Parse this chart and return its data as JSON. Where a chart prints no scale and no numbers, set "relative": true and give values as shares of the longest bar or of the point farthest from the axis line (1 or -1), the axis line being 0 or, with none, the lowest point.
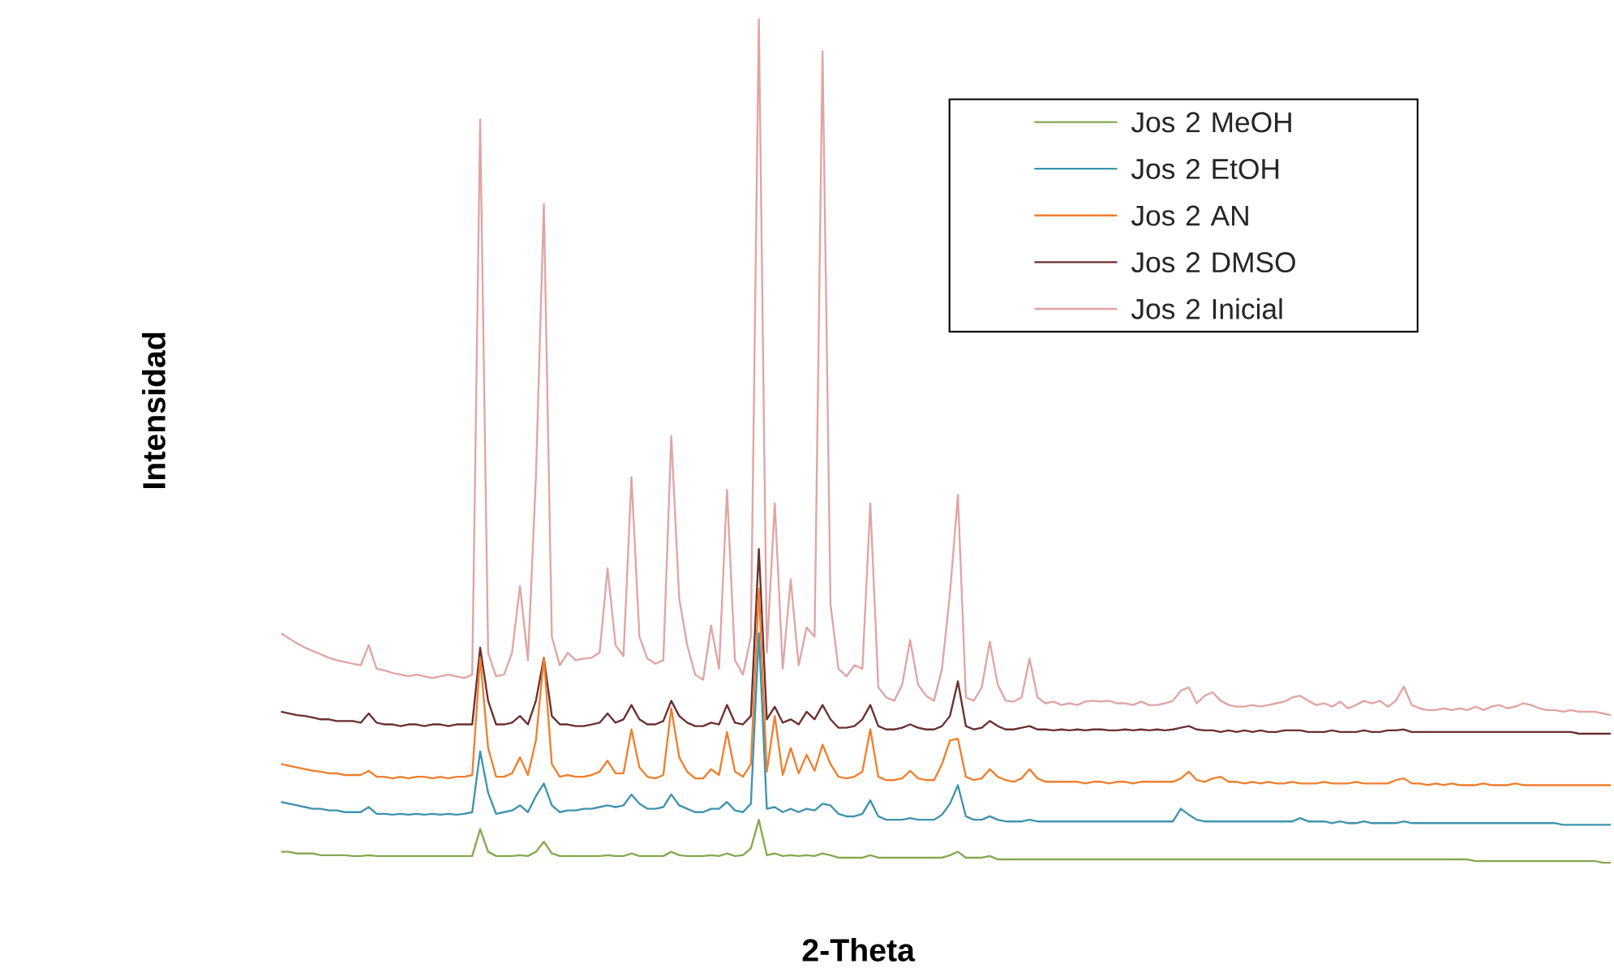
{
  "chart_data": {
    "type": "line",
    "relative": true,
    "xlabel": "2-Theta",
    "ylabel": "Intensidad",
    "legend": "top right",
    "categories": [
      null,
      null,
      null,
      null,
      null,
      null,
      null,
      null,
      null,
      null,
      null,
      null,
      null,
      null,
      null,
      null,
      null,
      null,
      null,
      null,
      null,
      null,
      null,
      null,
      null,
      null,
      null,
      null,
      null,
      null,
      null,
      null,
      null,
      null,
      null,
      null,
      null,
      null,
      null,
      null,
      null,
      null,
      null,
      null,
      null,
      null,
      null,
      null,
      null,
      null,
      null,
      null,
      null,
      null,
      null,
      null,
      null,
      null,
      null,
      null,
      null,
      null,
      null,
      null,
      null,
      null,
      null,
      null,
      null,
      null,
      null,
      null,
      null,
      null,
      null,
      null,
      null,
      null,
      null,
      null,
      null,
      null,
      null,
      null,
      null,
      null,
      null,
      null,
      null,
      null,
      null,
      null,
      null,
      null,
      null,
      null,
      null,
      null,
      null,
      null,
      null,
      null,
      null,
      null,
      null,
      null,
      null,
      null,
      null,
      null,
      null,
      null,
      null,
      null,
      null,
      null,
      null,
      null,
      null,
      null,
      null,
      null,
      null,
      null,
      null,
      null,
      null,
      null,
      null,
      null,
      null,
      null,
      null,
      null,
      null,
      null,
      null,
      null,
      null,
      null,
      null,
      null,
      null,
      null,
      null,
      null,
      null,
      null,
      null,
      null,
      null,
      null,
      null,
      null,
      null,
      null,
      null,
      null,
      null,
      null,
      null,
      null,
      null,
      null,
      null,
      null,
      null,
      null
    ],
    "series": [
      {
        "name": "Jos 2 MeOH",
        "color": "#86a950",
        "values": [
          0.013,
          0.013,
          0.011,
          0.011,
          0.011,
          0.009,
          0.009,
          0.009,
          0.009,
          0.008,
          0.008,
          0.009,
          0.008,
          0.008,
          0.008,
          0.008,
          0.008,
          0.008,
          0.008,
          0.008,
          0.008,
          0.008,
          0.008,
          0.008,
          0.008,
          0.04,
          0.013,
          0.008,
          0.008,
          0.008,
          0.009,
          0.008,
          0.013,
          0.025,
          0.011,
          0.008,
          0.008,
          0.008,
          0.008,
          0.008,
          0.008,
          0.009,
          0.008,
          0.008,
          0.011,
          0.008,
          0.008,
          0.008,
          0.008,
          0.013,
          0.009,
          0.008,
          0.008,
          0.008,
          0.009,
          0.008,
          0.011,
          0.008,
          0.009,
          0.017,
          0.051,
          0.009,
          0.011,
          0.008,
          0.009,
          0.008,
          0.009,
          0.008,
          0.011,
          0.009,
          0.006,
          0.006,
          0.006,
          0.006,
          0.009,
          0.006,
          0.006,
          0.006,
          0.006,
          0.006,
          0.006,
          0.006,
          0.006,
          0.006,
          0.009,
          0.013,
          0.006,
          0.006,
          0.006,
          0.008,
          0.004,
          0.004,
          0.004,
          0.004,
          0.004,
          0.004,
          0.004,
          0.004,
          0.004,
          0.004,
          0.004,
          0.004,
          0.004,
          0.004,
          0.004,
          0.004,
          0.004,
          0.004,
          0.004,
          0.004,
          0.004,
          0.004,
          0.004,
          0.004,
          0.004,
          0.004,
          0.004,
          0.004,
          0.004,
          0.004,
          0.004,
          0.004,
          0.004,
          0.004,
          0.004,
          0.004,
          0.004,
          0.004,
          0.004,
          0.004,
          0.004,
          0.004,
          0.004,
          0.004,
          0.004,
          0.004,
          0.004,
          0.004,
          0.004,
          0.004,
          0.004,
          0.004,
          0.004,
          0.004,
          0.004,
          0.004,
          0.004,
          0.004,
          0.004,
          0.004,
          0.002,
          0.002,
          0.002,
          0.002,
          0.002,
          0.002,
          0.002,
          0.002,
          0.002,
          0.002,
          0.002,
          0.002,
          0.002,
          0.002,
          0.002,
          0.002,
          0,
          0
        ]
      },
      {
        "name": "Jos 2 EtOH",
        "color": "#3f93ae",
        "values": [
          0.072,
          0.07,
          0.068,
          0.066,
          0.064,
          0.064,
          0.062,
          0.062,
          0.06,
          0.06,
          0.06,
          0.066,
          0.058,
          0.058,
          0.057,
          0.058,
          0.057,
          0.058,
          0.057,
          0.058,
          0.057,
          0.058,
          0.057,
          0.058,
          0.06,
          0.132,
          0.083,
          0.058,
          0.06,
          0.062,
          0.068,
          0.06,
          0.079,
          0.094,
          0.068,
          0.06,
          0.062,
          0.062,
          0.064,
          0.064,
          0.066,
          0.068,
          0.066,
          0.068,
          0.081,
          0.07,
          0.064,
          0.064,
          0.066,
          0.081,
          0.068,
          0.064,
          0.06,
          0.06,
          0.064,
          0.064,
          0.072,
          0.062,
          0.06,
          0.07,
          0.272,
          0.064,
          0.066,
          0.06,
          0.064,
          0.06,
          0.064,
          0.062,
          0.07,
          0.068,
          0.058,
          0.055,
          0.055,
          0.058,
          0.074,
          0.055,
          0.051,
          0.051,
          0.051,
          0.053,
          0.051,
          0.051,
          0.051,
          0.057,
          0.07,
          0.092,
          0.055,
          0.051,
          0.051,
          0.055,
          0.051,
          0.049,
          0.049,
          0.049,
          0.051,
          0.049,
          0.049,
          0.049,
          0.049,
          0.049,
          0.049,
          0.049,
          0.049,
          0.049,
          0.049,
          0.049,
          0.049,
          0.049,
          0.049,
          0.049,
          0.049,
          0.049,
          0.049,
          0.064,
          0.057,
          0.051,
          0.049,
          0.049,
          0.049,
          0.049,
          0.049,
          0.049,
          0.049,
          0.049,
          0.049,
          0.049,
          0.049,
          0.049,
          0.053,
          0.049,
          0.049,
          0.049,
          0.047,
          0.049,
          0.047,
          0.047,
          0.049,
          0.047,
          0.047,
          0.047,
          0.047,
          0.049,
          0.047,
          0.047,
          0.047,
          0.047,
          0.047,
          0.047,
          0.047,
          0.047,
          0.047,
          0.047,
          0.047,
          0.047,
          0.047,
          0.047,
          0.047,
          0.047,
          0.047,
          0.047,
          0.047,
          0.045,
          0.045,
          0.045,
          0.045,
          0.045,
          0.045,
          0.045
        ]
      },
      {
        "name": "Jos 2 AN",
        "color": "#f07f2d",
        "values": [
          0.117,
          0.115,
          0.113,
          0.111,
          0.109,
          0.108,
          0.106,
          0.106,
          0.104,
          0.104,
          0.104,
          0.109,
          0.102,
          0.102,
          0.1,
          0.102,
          0.1,
          0.102,
          0.102,
          0.1,
          0.102,
          0.1,
          0.102,
          0.102,
          0.104,
          0.243,
          0.136,
          0.102,
          0.102,
          0.106,
          0.125,
          0.104,
          0.145,
          0.243,
          0.117,
          0.102,
          0.104,
          0.102,
          0.102,
          0.104,
          0.108,
          0.121,
          0.106,
          0.106,
          0.158,
          0.113,
          0.102,
          0.1,
          0.104,
          0.183,
          0.125,
          0.108,
          0.1,
          0.1,
          0.111,
          0.104,
          0.155,
          0.108,
          0.102,
          0.117,
          0.325,
          0.108,
          0.174,
          0.104,
          0.136,
          0.106,
          0.128,
          0.109,
          0.14,
          0.117,
          0.102,
          0.1,
          0.102,
          0.108,
          0.158,
          0.102,
          0.098,
          0.098,
          0.1,
          0.109,
          0.1,
          0.098,
          0.098,
          0.117,
          0.145,
          0.147,
          0.102,
          0.098,
          0.1,
          0.111,
          0.102,
          0.098,
          0.096,
          0.1,
          0.111,
          0.1,
          0.096,
          0.096,
          0.096,
          0.096,
          0.096,
          0.094,
          0.096,
          0.096,
          0.094,
          0.096,
          0.096,
          0.094,
          0.096,
          0.096,
          0.096,
          0.096,
          0.096,
          0.1,
          0.108,
          0.098,
          0.096,
          0.1,
          0.102,
          0.096,
          0.096,
          0.094,
          0.096,
          0.094,
          0.096,
          0.094,
          0.094,
          0.096,
          0.094,
          0.094,
          0.094,
          0.096,
          0.094,
          0.094,
          0.094,
          0.096,
          0.094,
          0.094,
          0.094,
          0.094,
          0.098,
          0.1,
          0.094,
          0.094,
          0.092,
          0.094,
          0.092,
          0.094,
          0.092,
          0.092,
          0.092,
          0.094,
          0.092,
          0.092,
          0.092,
          0.094,
          0.092,
          0.092,
          0.092,
          0.092,
          0.092,
          0.092,
          0.092,
          0.092,
          0.092,
          0.092,
          0.092,
          0.092
        ]
      },
      {
        "name": "Jos 2 DMSO",
        "color": "#6b2f2f",
        "values": [
          0.179,
          0.177,
          0.175,
          0.174,
          0.172,
          0.17,
          0.17,
          0.168,
          0.168,
          0.168,
          0.166,
          0.177,
          0.166,
          0.164,
          0.164,
          0.162,
          0.164,
          0.164,
          0.162,
          0.164,
          0.164,
          0.162,
          0.164,
          0.164,
          0.164,
          0.255,
          0.192,
          0.164,
          0.164,
          0.166,
          0.174,
          0.164,
          0.192,
          0.243,
          0.174,
          0.164,
          0.164,
          0.162,
          0.162,
          0.164,
          0.166,
          0.177,
          0.166,
          0.17,
          0.187,
          0.17,
          0.164,
          0.164,
          0.168,
          0.192,
          0.174,
          0.166,
          0.162,
          0.162,
          0.166,
          0.164,
          0.187,
          0.166,
          0.164,
          0.174,
          0.372,
          0.17,
          0.185,
          0.166,
          0.17,
          0.164,
          0.179,
          0.17,
          0.187,
          0.17,
          0.16,
          0.16,
          0.162,
          0.17,
          0.187,
          0.162,
          0.158,
          0.158,
          0.16,
          0.164,
          0.16,
          0.158,
          0.158,
          0.162,
          0.174,
          0.215,
          0.162,
          0.158,
          0.16,
          0.168,
          0.162,
          0.158,
          0.158,
          0.16,
          0.162,
          0.158,
          0.158,
          0.157,
          0.158,
          0.157,
          0.158,
          0.157,
          0.158,
          0.158,
          0.157,
          0.157,
          0.158,
          0.157,
          0.158,
          0.157,
          0.158,
          0.157,
          0.158,
          0.16,
          0.162,
          0.158,
          0.157,
          0.157,
          0.155,
          0.157,
          0.155,
          0.157,
          0.155,
          0.157,
          0.155,
          0.155,
          0.157,
          0.157,
          0.157,
          0.155,
          0.155,
          0.155,
          0.157,
          0.155,
          0.155,
          0.155,
          0.157,
          0.155,
          0.155,
          0.157,
          0.157,
          0.158,
          0.155,
          0.155,
          0.155,
          0.155,
          0.155,
          0.155,
          0.155,
          0.155,
          0.155,
          0.155,
          0.155,
          0.155,
          0.155,
          0.155,
          0.155,
          0.155,
          0.155,
          0.155,
          0.155,
          0.155,
          0.155,
          0.153,
          0.153,
          0.153,
          0.153,
          0.153
        ]
      },
      {
        "name": "Jos 2 Inicial",
        "color": "#e0a5a3",
        "values": [
          0.272,
          0.266,
          0.26,
          0.255,
          0.251,
          0.247,
          0.243,
          0.24,
          0.238,
          0.236,
          0.234,
          0.258,
          0.23,
          0.228,
          0.225,
          0.223,
          0.221,
          0.223,
          0.221,
          0.219,
          0.221,
          0.223,
          0.221,
          0.219,
          0.223,
          0.881,
          0.249,
          0.221,
          0.223,
          0.249,
          0.328,
          0.24,
          0.457,
          0.781,
          0.268,
          0.234,
          0.249,
          0.24,
          0.242,
          0.243,
          0.249,
          0.349,
          0.258,
          0.245,
          0.457,
          0.268,
          0.242,
          0.236,
          0.24,
          0.506,
          0.313,
          0.258,
          0.223,
          0.217,
          0.281,
          0.23,
          0.442,
          0.24,
          0.223,
          0.268,
          1,
          0.249,
          0.426,
          0.23,
          0.336,
          0.234,
          0.279,
          0.268,
          0.962,
          0.306,
          0.23,
          0.221,
          0.234,
          0.23,
          0.426,
          0.208,
          0.196,
          0.192,
          0.211,
          0.264,
          0.211,
          0.198,
          0.192,
          0.23,
          0.319,
          0.436,
          0.196,
          0.192,
          0.208,
          0.262,
          0.211,
          0.192,
          0.191,
          0.196,
          0.242,
          0.196,
          0.189,
          0.191,
          0.187,
          0.189,
          0.187,
          0.191,
          0.192,
          0.191,
          0.192,
          0.189,
          0.189,
          0.187,
          0.191,
          0.187,
          0.187,
          0.189,
          0.192,
          0.204,
          0.208,
          0.189,
          0.198,
          0.202,
          0.192,
          0.187,
          0.185,
          0.185,
          0.187,
          0.185,
          0.187,
          0.189,
          0.191,
          0.196,
          0.198,
          0.192,
          0.187,
          0.189,
          0.185,
          0.191,
          0.183,
          0.187,
          0.192,
          0.189,
          0.192,
          0.185,
          0.192,
          0.209,
          0.187,
          0.183,
          0.181,
          0.181,
          0.183,
          0.181,
          0.183,
          0.181,
          0.185,
          0.181,
          0.185,
          0.187,
          0.183,
          0.185,
          0.189,
          0.187,
          0.183,
          0.181,
          0.181,
          0.179,
          0.181,
          0.179,
          0.179,
          0.179,
          0.177,
          0.175
        ]
      }
    ]
  }
}
